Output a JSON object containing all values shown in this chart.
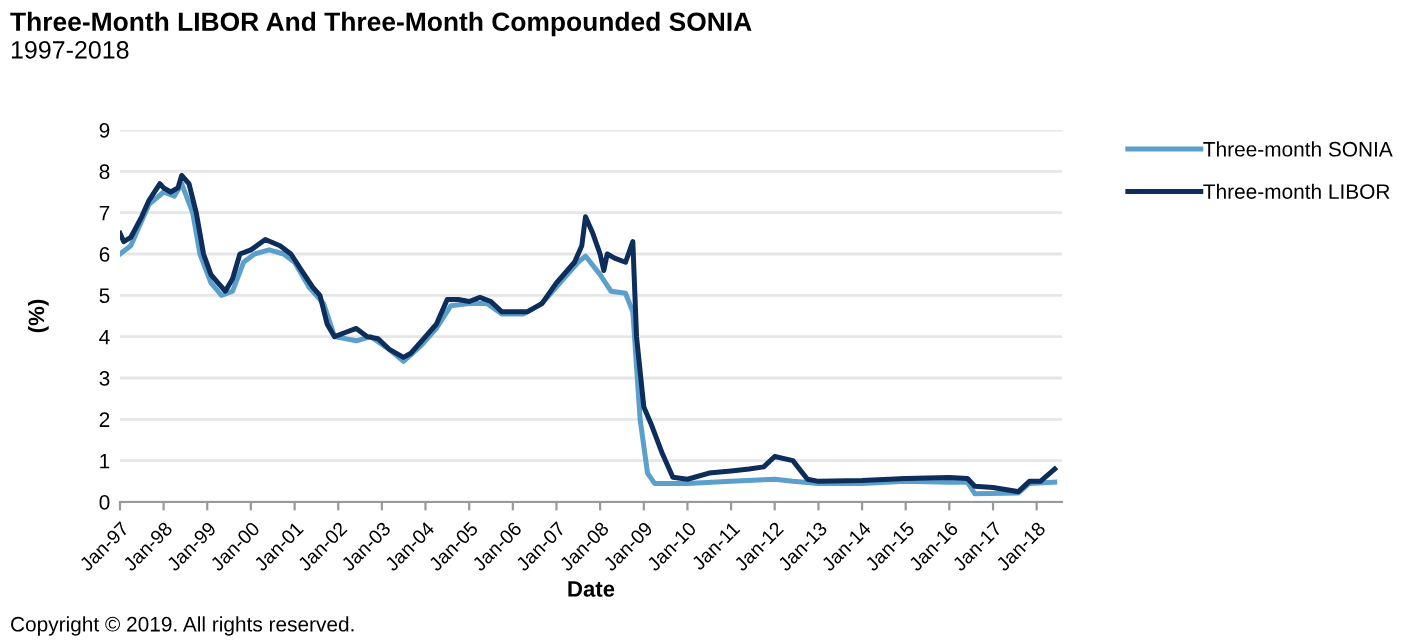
{
  "chart_data": {
    "type": "line",
    "title": "Three-Month LIBOR And Three-Month Compounded SONIA",
    "subtitle": "1997-2018",
    "xlabel": "Date",
    "ylabel": "(%)",
    "xlim": [
      "1997-01-01",
      "2018-08-01"
    ],
    "xticks": [
      {
        "value": "1997-01",
        "label": "Jan-97"
      },
      {
        "value": "1998-01",
        "label": "Jan-98"
      },
      {
        "value": "1999-01",
        "label": "Jan-99"
      },
      {
        "value": "2000-01",
        "label": "Jan-00"
      },
      {
        "value": "2001-01",
        "label": "Jan-01"
      },
      {
        "value": "2002-01",
        "label": "Jan-02"
      },
      {
        "value": "2003-01",
        "label": "Jan-03"
      },
      {
        "value": "2004-01",
        "label": "Jan-04"
      },
      {
        "value": "2005-01",
        "label": "Jan-05"
      },
      {
        "value": "2006-01",
        "label": "Jan-06"
      },
      {
        "value": "2007-01",
        "label": "Jan-07"
      },
      {
        "value": "2008-01",
        "label": "Jan-08"
      },
      {
        "value": "2009-01",
        "label": "Jan-09"
      },
      {
        "value": "2010-01",
        "label": "Jan-10"
      },
      {
        "value": "2011-01",
        "label": "Jan-11"
      },
      {
        "value": "2012-01",
        "label": "Jan-12"
      },
      {
        "value": "2013-01",
        "label": "Jan-13"
      },
      {
        "value": "2014-01",
        "label": "Jan-14"
      },
      {
        "value": "2015-01",
        "label": "Jan-15"
      },
      {
        "value": "2016-01",
        "label": "Jan-16"
      },
      {
        "value": "2017-01",
        "label": "Jan-17"
      },
      {
        "value": "2018-01",
        "label": "Jan-18"
      }
    ],
    "ylim": [
      0,
      9
    ],
    "yticks": [
      0,
      1,
      2,
      3,
      4,
      5,
      6,
      7,
      8,
      9
    ],
    "grid": "y",
    "legend": "top right",
    "line_style": "solid",
    "marker": "none",
    "annotations": [
      "Copyright © 2019. All rights reserved."
    ],
    "series": [
      {
        "name": "Three-month SONIA",
        "color": "#5b9fcc",
        "x": [
          "1997-01",
          "1997-04",
          "1997-07",
          "1997-09",
          "1998-01",
          "1998-04",
          "1998-06",
          "1998-09",
          "1998-11",
          "1999-02",
          "1999-05",
          "1999-08",
          "1999-11",
          "2000-02",
          "2000-06",
          "2000-10",
          "2001-01",
          "2001-05",
          "2001-09",
          "2001-12",
          "2002-06",
          "2002-10",
          "2003-03",
          "2003-07",
          "2003-12",
          "2004-04",
          "2004-08",
          "2005-01",
          "2005-06",
          "2005-10",
          "2006-04",
          "2006-09",
          "2007-03",
          "2007-07",
          "2007-09",
          "2008-01",
          "2008-04",
          "2008-08",
          "2008-10",
          "2008-12",
          "2009-02",
          "2009-04",
          "2010-01",
          "2011-01",
          "2012-01",
          "2012-06",
          "2013-01",
          "2014-01",
          "2015-01",
          "2016-01",
          "2016-06",
          "2016-08",
          "2017-08",
          "2017-11",
          "2018-06"
        ],
        "values": [
          6.0,
          6.2,
          6.8,
          7.2,
          7.5,
          7.4,
          7.7,
          7.0,
          6.0,
          5.3,
          5.0,
          5.1,
          5.8,
          6.0,
          6.1,
          6.0,
          5.8,
          5.2,
          4.8,
          4.0,
          3.9,
          4.0,
          3.7,
          3.4,
          3.8,
          4.2,
          4.75,
          4.8,
          4.8,
          4.55,
          4.55,
          4.8,
          5.4,
          5.8,
          5.95,
          5.5,
          5.1,
          5.05,
          4.6,
          2.0,
          0.7,
          0.45,
          0.45,
          0.5,
          0.55,
          0.5,
          0.45,
          0.45,
          0.5,
          0.48,
          0.48,
          0.2,
          0.22,
          0.45,
          0.48
        ]
      },
      {
        "name": "Three-month LIBOR",
        "color": "#0d2d5a",
        "x": [
          "1997-01",
          "1997-02",
          "1997-04",
          "1997-07",
          "1997-09",
          "1997-12",
          "1998-01",
          "1998-03",
          "1998-05",
          "1998-06",
          "1998-08",
          "1998-10",
          "1998-12",
          "1999-02",
          "1999-04",
          "1999-06",
          "1999-08",
          "1999-10",
          "2000-01",
          "2000-05",
          "2000-09",
          "2000-12",
          "2001-03",
          "2001-06",
          "2001-08",
          "2001-10",
          "2001-12",
          "2002-03",
          "2002-06",
          "2002-09",
          "2002-12",
          "2003-03",
          "2003-07",
          "2003-09",
          "2003-12",
          "2004-04",
          "2004-07",
          "2004-10",
          "2005-01",
          "2005-04",
          "2005-07",
          "2005-10",
          "2006-01",
          "2006-05",
          "2006-09",
          "2007-01",
          "2007-06",
          "2007-08",
          "2007-09",
          "2007-11",
          "2008-01",
          "2008-02",
          "2008-03",
          "2008-05",
          "2008-08",
          "2008-10",
          "2008-11",
          "2009-01",
          "2009-03",
          "2009-06",
          "2009-09",
          "2010-01",
          "2010-07",
          "2011-01",
          "2011-06",
          "2011-10",
          "2012-01",
          "2012-06",
          "2012-10",
          "2013-01",
          "2014-01",
          "2015-01",
          "2016-01",
          "2016-06",
          "2016-08",
          "2017-01",
          "2017-08",
          "2017-11",
          "2018-02",
          "2018-06"
        ],
        "values": [
          6.5,
          6.3,
          6.4,
          6.9,
          7.3,
          7.7,
          7.6,
          7.5,
          7.6,
          7.9,
          7.7,
          7.0,
          6.0,
          5.5,
          5.3,
          5.1,
          5.4,
          6.0,
          6.1,
          6.35,
          6.2,
          6.0,
          5.6,
          5.2,
          5.0,
          4.3,
          4.0,
          4.1,
          4.2,
          4.0,
          3.95,
          3.7,
          3.5,
          3.6,
          3.9,
          4.3,
          4.9,
          4.9,
          4.85,
          4.95,
          4.85,
          4.6,
          4.6,
          4.6,
          4.8,
          5.3,
          5.8,
          6.2,
          6.9,
          6.5,
          6.0,
          5.6,
          6.0,
          5.9,
          5.8,
          6.3,
          4.0,
          2.3,
          1.9,
          1.2,
          0.6,
          0.55,
          0.7,
          0.75,
          0.8,
          0.85,
          1.1,
          1.0,
          0.55,
          0.5,
          0.52,
          0.57,
          0.59,
          0.57,
          0.38,
          0.35,
          0.25,
          0.5,
          0.5,
          0.8
        ]
      }
    ]
  }
}
